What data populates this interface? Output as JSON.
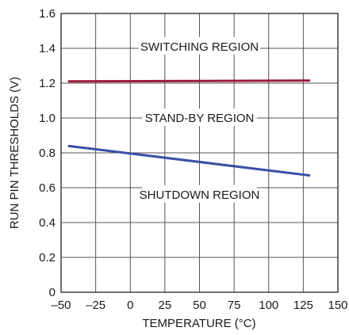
{
  "chart_data": {
    "type": "line",
    "title": "",
    "xlabel": "TEMPERATURE (°C)",
    "ylabel": "RUN PIN THRESHOLDS (V)",
    "xlim": [
      -50,
      150
    ],
    "ylim": [
      0,
      1.6
    ],
    "x_ticks": [
      -50,
      -25,
      0,
      25,
      50,
      75,
      100,
      125,
      150
    ],
    "x_tick_labels": [
      "–50",
      "–25",
      "0",
      "25",
      "50",
      "75",
      "100",
      "125",
      "150"
    ],
    "y_ticks": [
      0,
      0.2,
      0.4,
      0.6,
      0.8,
      1.0,
      1.2,
      1.4,
      1.6
    ],
    "y_tick_labels": [
      "0",
      "0.2",
      "0.4",
      "0.6",
      "0.8",
      "1.0",
      "1.2",
      "1.4",
      "1.6"
    ],
    "grid": true,
    "series": [
      {
        "x": [
          -45,
          130
        ],
        "y": [
          1.21,
          1.215
        ],
        "color": "#9b1b3a"
      },
      {
        "x": [
          -45,
          130
        ],
        "y": [
          0.84,
          0.67
        ],
        "color": "#3a4fa3"
      }
    ],
    "annotations": [
      {
        "text": "SWITCHING REGION",
        "x": 50,
        "y": 1.41
      },
      {
        "text": "STAND-BY REGION",
        "x": 50,
        "y": 1.0
      },
      {
        "text": "SHUTDOWN REGION",
        "x": 50,
        "y": 0.56
      }
    ]
  }
}
